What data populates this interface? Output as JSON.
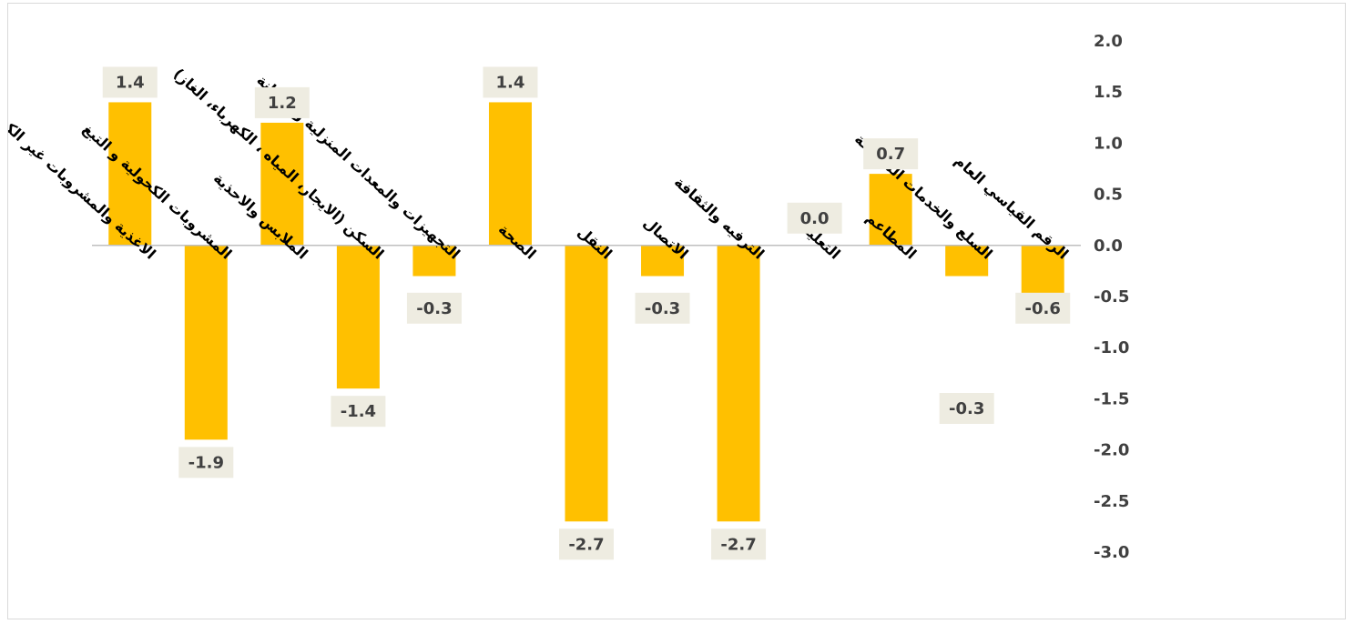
{
  "chart_data": {
    "type": "bar",
    "title": "",
    "xlabel": "",
    "ylabel": "",
    "ylim": [
      -3.0,
      2.0
    ],
    "yticks": [
      "2.0",
      "1.5",
      "1.0",
      "0.5",
      "0.0",
      "-0.5",
      "-1.0",
      "-1.5",
      "-2.0",
      "-2.5",
      "-3.0"
    ],
    "categories": [
      "الرقم القياسي العام",
      "السلع والخدمات المتنوعة",
      "المطاعم",
      "التعليم",
      "الترفيه والثقافة",
      "الاتصال",
      "النقل",
      "الصحة",
      "التجهيزات والمعدات المنزلية والصيانة",
      "السكن (الايجار، المياه ، الكهرباء، الغاز)",
      "الملابس والاحذية",
      "المشروبات الكحولية و التبغ",
      "الاغذية والمشروبات غير الكحولية"
    ],
    "values": [
      -0.6,
      -0.3,
      0.7,
      0.0,
      -2.7,
      -0.3,
      -2.7,
      1.4,
      -0.3,
      -1.4,
      1.2,
      -1.9,
      1.4
    ],
    "data_labels": [
      "-0.6",
      "-0.3",
      "0.7",
      "0.0",
      "-2.7",
      "-0.3",
      "-2.7",
      "1.4",
      "-0.3",
      "-1.4",
      "1.2",
      "-1.9",
      "1.4"
    ],
    "grid": false,
    "legend": "none",
    "colors": {
      "bar": "#FFC000",
      "label_bg": "#EEECE1",
      "text": "#404040",
      "axis": "#bfbfbf"
    }
  }
}
